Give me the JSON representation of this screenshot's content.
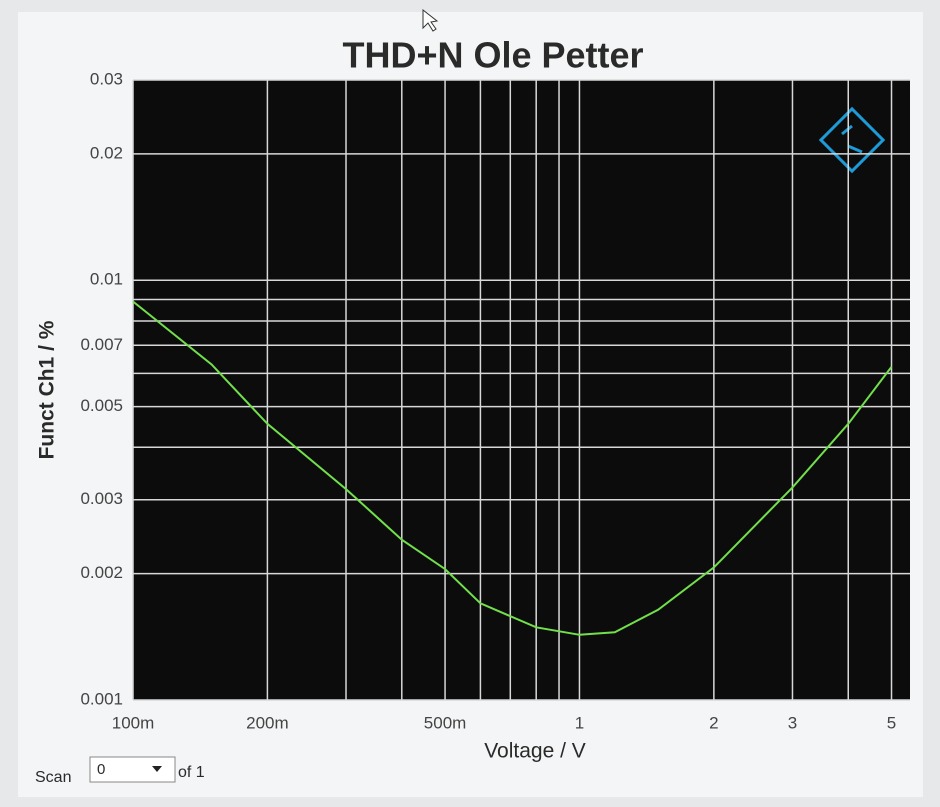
{
  "chart_data": {
    "type": "line",
    "title": "THD+N Ole Petter",
    "x_label": "Voltage / V",
    "y_label": "Funct Ch1 / %",
    "x": [
      0.1,
      0.15,
      0.2,
      0.3,
      0.4,
      0.5,
      0.6,
      0.8,
      1.0,
      1.2,
      1.5,
      2,
      3,
      4,
      5
    ],
    "values": [
      0.0089,
      0.0063,
      0.00455,
      0.00318,
      0.00241,
      0.00205,
      0.0017,
      0.00149,
      0.00143,
      0.00145,
      0.00164,
      0.00207,
      0.00321,
      0.00455,
      0.00622
    ],
    "color": "#72e04a",
    "x_log": true,
    "y_log": true,
    "xlim": [
      0.1,
      5.5
    ],
    "ylim": [
      0.001,
      0.03
    ],
    "xticks": [
      {
        "value": 0.1,
        "label": "100m"
      },
      {
        "value": 0.2,
        "label": "200m"
      },
      {
        "value": 0.5,
        "label": "500m"
      },
      1,
      2,
      3,
      5
    ],
    "yticks": [
      0.001,
      0.002,
      0.003,
      0.005,
      0.007,
      0.01,
      0.02,
      0.03
    ],
    "x_minor_grid": [
      0.3,
      0.4,
      0.6,
      0.7,
      0.8,
      0.9,
      4
    ],
    "y_minor_grid": [
      0.004,
      0.006,
      0.008,
      0.009
    ],
    "grid": true
  },
  "scan_control": {
    "label": "Scan",
    "value": "0",
    "suffix": "of 1"
  }
}
